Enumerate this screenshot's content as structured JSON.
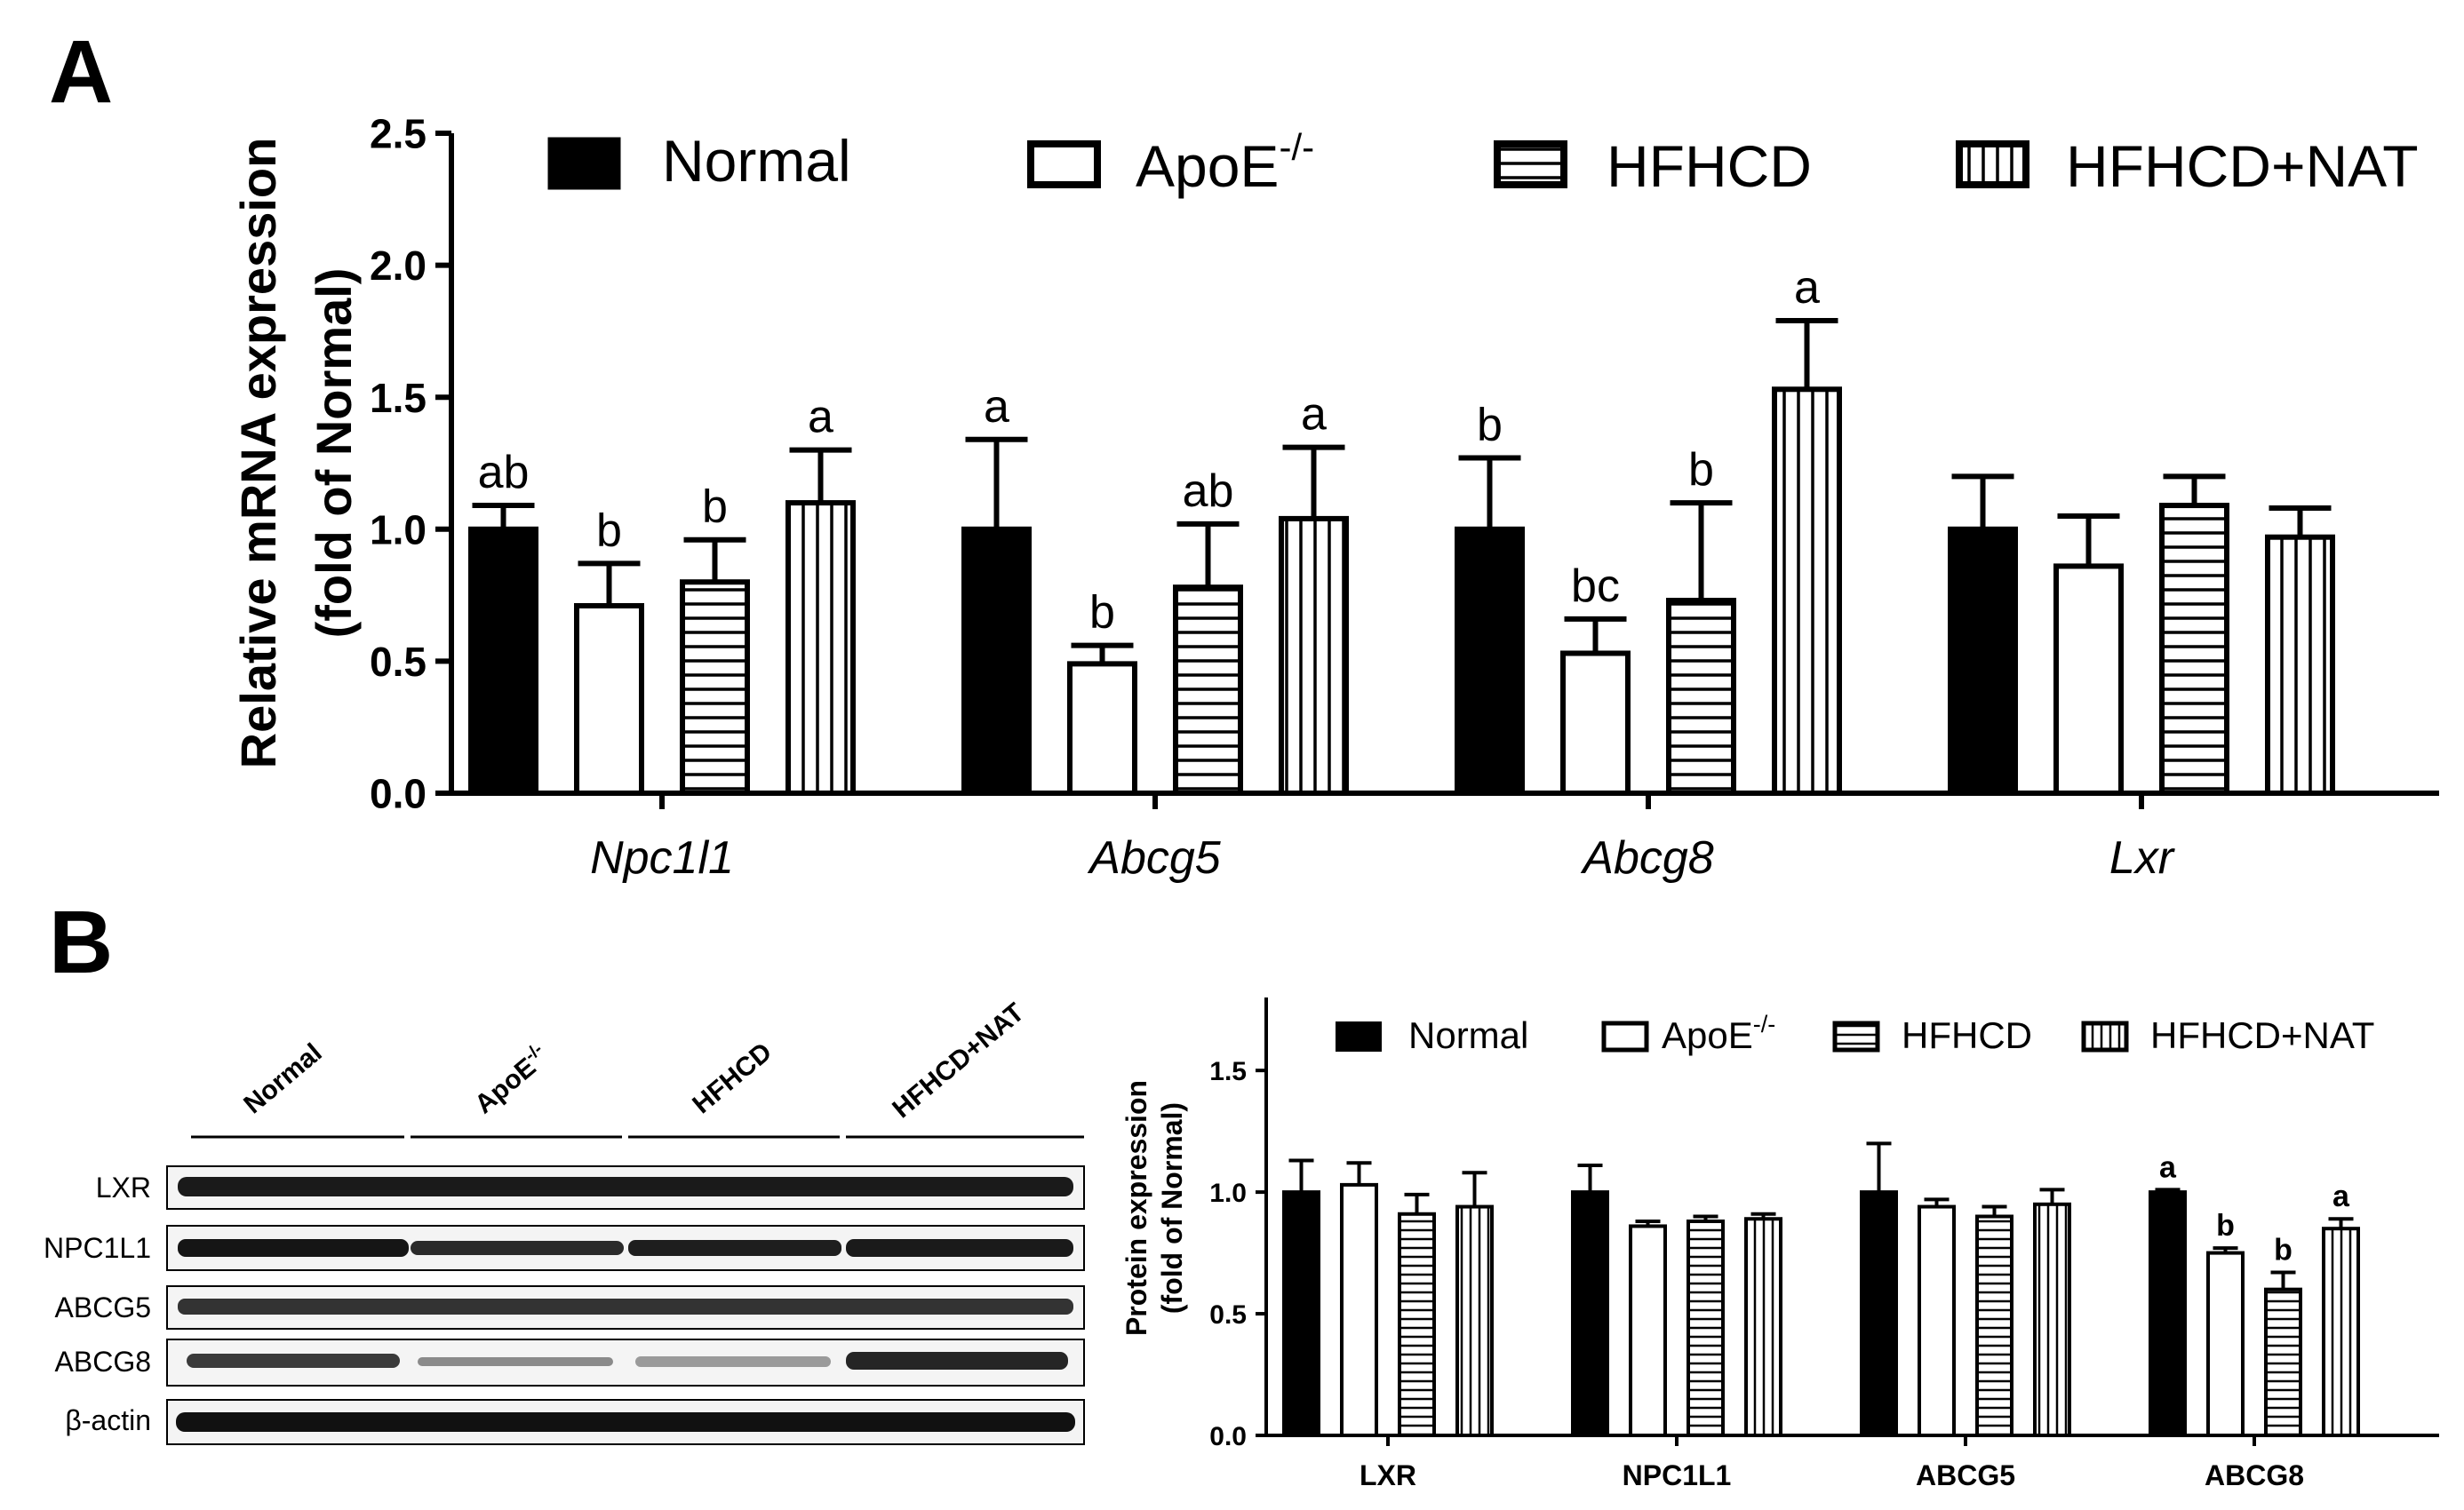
{
  "panel_a": {
    "label": "A"
  },
  "panel_b": {
    "label": "B"
  },
  "legend": {
    "normal": "Normal",
    "apoe_base": "ApoE",
    "apoe_sup": "-/-",
    "hfhcd": "HFHCD",
    "hfhcd_nat": "HFHCD+NAT"
  },
  "blot": {
    "lane_groups": [
      "Normal",
      "ApoE",
      "HFHCD",
      "HFHCD+NAT"
    ],
    "apoe_sup": "-/-",
    "rows": [
      "LXR",
      "NPC1L1",
      "ABCG5",
      "ABCG8",
      "β-actin"
    ]
  },
  "colors": {
    "bar_fill": "#000000",
    "open_fill": "#ffffff",
    "stroke": "#000000"
  },
  "chart_data": [
    {
      "type": "bar",
      "panel": "A",
      "title": "",
      "ylabel_line1": "Relative mRNA expression",
      "ylabel_line2": "(fold of Normal)",
      "xlabel": "",
      "ylim": [
        0,
        2.5
      ],
      "yticks": [
        "0.0",
        "0.5",
        "1.0",
        "1.5",
        "2.0",
        "2.5"
      ],
      "categories": [
        "Npc1l1",
        "Abcg5",
        "Abcg8",
        "Lxr"
      ],
      "series": [
        {
          "name": "Normal",
          "pattern": "solid",
          "values": [
            1.0,
            1.0,
            1.0,
            1.0
          ],
          "errors": [
            0.09,
            0.34,
            0.27,
            0.2
          ],
          "labels": [
            "ab",
            "a",
            "b",
            ""
          ]
        },
        {
          "name": "ApoE-/-",
          "pattern": "open",
          "values": [
            0.71,
            0.49,
            0.53,
            0.86
          ],
          "errors": [
            0.16,
            0.07,
            0.13,
            0.19
          ],
          "labels": [
            "b",
            "b",
            "bc",
            ""
          ]
        },
        {
          "name": "HFHCD",
          "pattern": "horizontal",
          "values": [
            0.8,
            0.78,
            0.73,
            1.09
          ],
          "errors": [
            0.16,
            0.24,
            0.37,
            0.11
          ],
          "labels": [
            "b",
            "ab",
            "b",
            ""
          ]
        },
        {
          "name": "HFHCD+NAT",
          "pattern": "vertical",
          "values": [
            1.1,
            1.04,
            1.53,
            0.97
          ],
          "errors": [
            0.2,
            0.27,
            0.26,
            0.11
          ],
          "labels": [
            "a",
            "a",
            "a",
            ""
          ]
        }
      ]
    },
    {
      "type": "bar",
      "panel": "B",
      "title": "",
      "ylabel_line1": "Protein expression",
      "ylabel_line2": "(fold of Normal)",
      "xlabel": "",
      "ylim": [
        0,
        1.8
      ],
      "yticks": [
        "0.0",
        "0.5",
        "1.0",
        "1.5"
      ],
      "categories": [
        "LXR",
        "NPC1L1",
        "ABCG5",
        "ABCG8"
      ],
      "series": [
        {
          "name": "Normal",
          "pattern": "solid",
          "values": [
            1.0,
            1.0,
            1.0,
            1.0
          ],
          "errors": [
            0.13,
            0.11,
            0.2,
            0.01
          ],
          "labels": [
            "",
            "",
            "",
            "a"
          ]
        },
        {
          "name": "ApoE-/-",
          "pattern": "open",
          "values": [
            1.03,
            0.86,
            0.94,
            0.75
          ],
          "errors": [
            0.09,
            0.02,
            0.03,
            0.02
          ],
          "labels": [
            "",
            "",
            "",
            "b"
          ]
        },
        {
          "name": "HFHCD",
          "pattern": "horizontal",
          "values": [
            0.91,
            0.88,
            0.9,
            0.6
          ],
          "errors": [
            0.08,
            0.02,
            0.04,
            0.07
          ],
          "labels": [
            "",
            "",
            "",
            "b"
          ]
        },
        {
          "name": "HFHCD+NAT",
          "pattern": "vertical",
          "values": [
            0.94,
            0.89,
            0.95,
            0.85
          ],
          "errors": [
            0.14,
            0.02,
            0.06,
            0.04
          ],
          "labels": [
            "",
            "",
            "",
            "a"
          ]
        }
      ]
    }
  ]
}
